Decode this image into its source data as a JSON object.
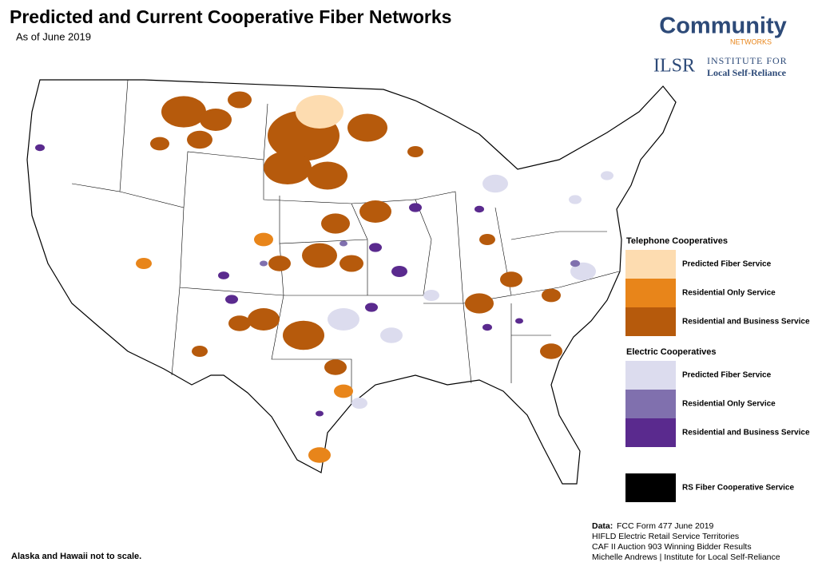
{
  "header": {
    "title": "Predicted and Current Cooperative Fiber Networks",
    "subtitle": "As of June 2019"
  },
  "logos": {
    "community": "Community",
    "community_sub": "NETWORKS",
    "ilsr": "ILSR",
    "ilsr_line1": "INSTITUTE FOR",
    "ilsr_line2": "Local Self-Reliance"
  },
  "legend": {
    "sections": [
      {
        "title": "Telephone Cooperatives",
        "items": [
          {
            "label": "Predicted Fiber Service",
            "color": "#fddcb0"
          },
          {
            "label": "Residential Only Service",
            "color": "#e8851a"
          },
          {
            "label": "Residential and Business Service",
            "color": "#b65a0c"
          }
        ]
      },
      {
        "title": "Electric Cooperatives",
        "items": [
          {
            "label": "Predicted Fiber Service",
            "color": "#dcdcee"
          },
          {
            "label": "Residential Only Service",
            "color": "#8070ae"
          },
          {
            "label": "Residential and Business Service",
            "color": "#5a2a8e"
          }
        ]
      },
      {
        "items": [
          {
            "label": "RS Fiber Cooperative Service",
            "color": "#000000"
          }
        ]
      }
    ]
  },
  "note": "Alaska and Hawaii not to scale.",
  "source": {
    "label": "Data:",
    "lines": [
      "FCC Form 477 June 2019",
      "HIFLD Electric Retail Service Territories",
      "CAF II Auction 903 Winning Bidder Results",
      "Michelle Andrews | Institute for Local Self-Reliance"
    ]
  }
}
